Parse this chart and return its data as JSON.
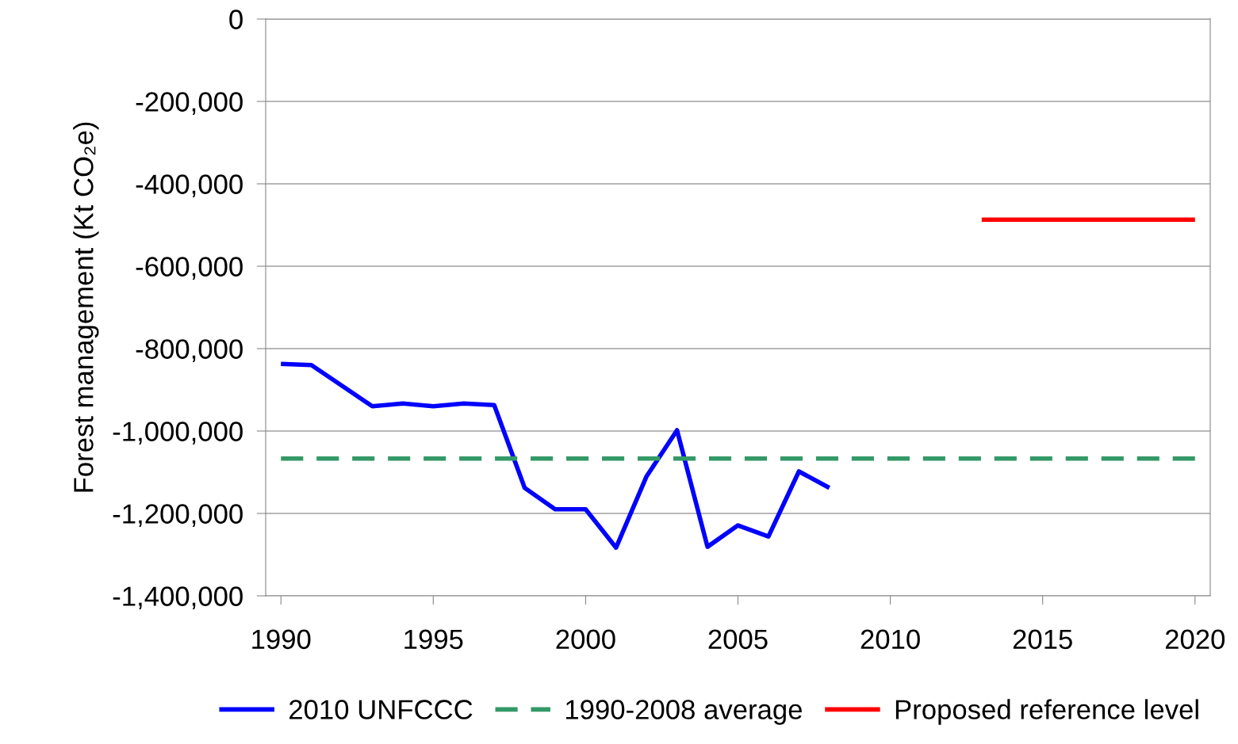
{
  "chart_data": {
    "type": "line",
    "ylabel": "Forest management (Kt CO₂e)",
    "xlim": [
      1989.5,
      2020.5
    ],
    "xticks": [
      1990,
      1995,
      2000,
      2005,
      2010,
      2015,
      2020
    ],
    "ylim": [
      -1400000,
      0
    ],
    "yticks": [
      0,
      {
        "value": -200000,
        "label": "-200,000"
      },
      {
        "value": -400000,
        "label": "-400,000"
      },
      {
        "value": -600000,
        "label": "-600,000"
      },
      {
        "value": -800000,
        "label": "-800,000"
      },
      {
        "value": -1000000,
        "label": "-1,000,000"
      },
      {
        "value": -1200000,
        "label": "-1,200,000"
      },
      {
        "value": -1400000,
        "label": "-1,400,000"
      }
    ],
    "grid": "y",
    "legend": "bottom",
    "marker": "none",
    "series": [
      {
        "name": "2010 UNFCCC",
        "color": "#0000ff",
        "line_style": "solid",
        "x": [
          1990,
          1991,
          1992,
          1993,
          1994,
          1995,
          1996,
          1997,
          1998,
          1999,
          2000,
          2001,
          2002,
          2003,
          2004,
          2005,
          2006,
          2007,
          2008
        ],
        "values": [
          -837000,
          -840000,
          -890000,
          -940000,
          -933000,
          -940000,
          -933000,
          -937000,
          -1138000,
          -1190000,
          -1190000,
          -1283000,
          -1110000,
          -998000,
          -1281000,
          -1229000,
          -1256000,
          -1098000,
          -1138000
        ]
      },
      {
        "name": "1990-2008 average",
        "color": "#339966",
        "line_style": "dashed",
        "x": [
          1990,
          2020
        ],
        "values": [
          -1067000,
          -1067000
        ]
      },
      {
        "name": "Proposed reference level",
        "color": "#ff0000",
        "line_style": "solid",
        "x": [
          2013,
          2020
        ],
        "values": [
          -487000,
          -487000
        ]
      }
    ]
  }
}
